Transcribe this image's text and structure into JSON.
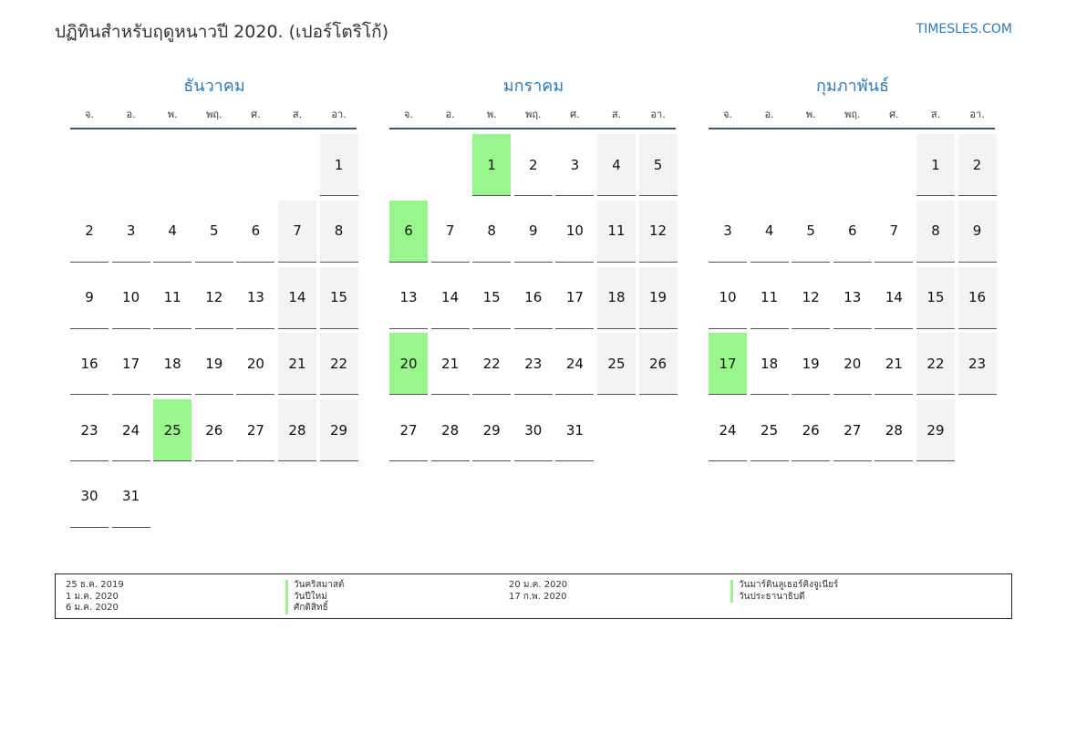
{
  "header": {
    "title": "ปฏิทินสำหรับฤดูหนาวปี 2020. (เปอร์โตริโก้)",
    "site": "TIMESLES.COM"
  },
  "weekdays": [
    "จ.",
    "อ.",
    "พ.",
    "พฤ.",
    "ศ.",
    "ส.",
    "อา."
  ],
  "colors": {
    "accent": "#2a7bbd",
    "holiday": "#99f68c",
    "weekend": "#f3f3f3",
    "rule": "#3f5673"
  },
  "months": [
    {
      "name": "ธันวาคม",
      "start_offset": 6,
      "days": 31,
      "holidays": [
        25
      ]
    },
    {
      "name": "มกราคม",
      "start_offset": 2,
      "days": 31,
      "holidays": [
        1,
        6,
        20
      ]
    },
    {
      "name": "กุมภาพันธ์",
      "start_offset": 5,
      "days": 29,
      "holidays": [
        17
      ]
    }
  ],
  "legend": [
    {
      "date": "25 ธ.ค. 2019",
      "name": "วันคริสมาสต์"
    },
    {
      "date": "1 ม.ค. 2020",
      "name": "วันปีใหม่"
    },
    {
      "date": "6 ม.ค. 2020",
      "name": "ศักดิสิทธิ์"
    },
    {
      "date": "20 ม.ค. 2020",
      "name": "วันมาร์ตินลูเธอร์คิงจูเนียร์"
    },
    {
      "date": "17 ก.พ. 2020",
      "name": "วันประธานาธิบดี"
    }
  ]
}
